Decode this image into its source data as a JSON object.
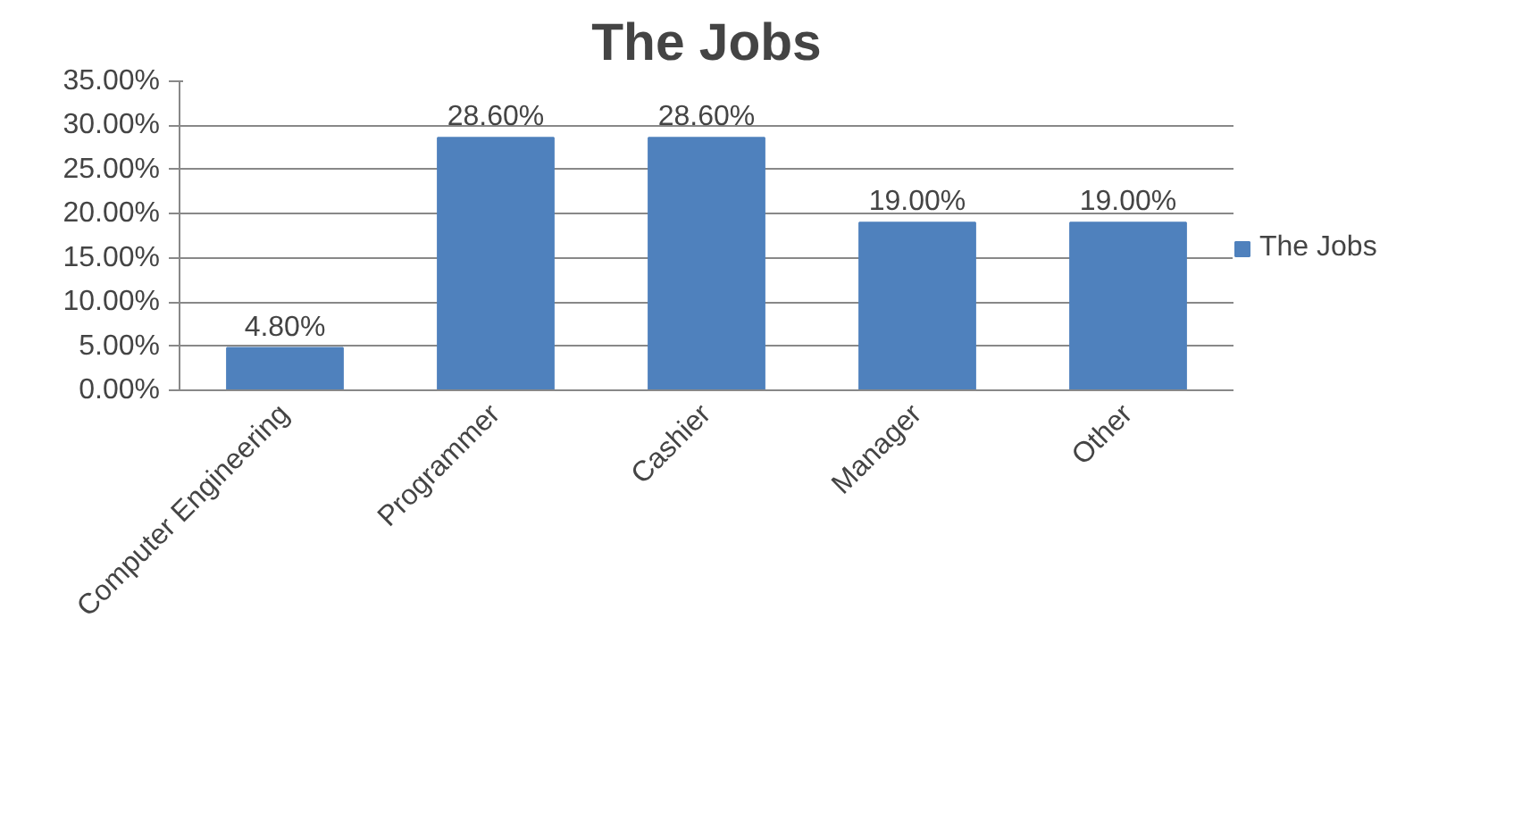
{
  "chart_data": {
    "type": "bar",
    "title": "The Jobs",
    "categories": [
      "Computer Engineering",
      "Programmer",
      "Cashier",
      "Manager",
      "Other"
    ],
    "series": [
      {
        "name": "The Jobs",
        "color": "#4f81bd",
        "values": [
          4.8,
          28.6,
          28.6,
          19.0,
          19.0
        ],
        "value_labels": [
          "4.80%",
          "28.60%",
          "28.60%",
          "19.00%",
          "19.00%"
        ]
      }
    ],
    "ylim": [
      0,
      35
    ],
    "yticks": [
      {
        "value": 0,
        "label": "0.00%"
      },
      {
        "value": 5,
        "label": "5.00%"
      },
      {
        "value": 10,
        "label": "10.00%"
      },
      {
        "value": 15,
        "label": "15.00%"
      },
      {
        "value": 20,
        "label": "20.00%"
      },
      {
        "value": 25,
        "label": "25.00%"
      },
      {
        "value": 30,
        "label": "30.00%"
      },
      {
        "value": 35,
        "label": "35.00%"
      }
    ],
    "grid": "y",
    "legend": "right"
  }
}
